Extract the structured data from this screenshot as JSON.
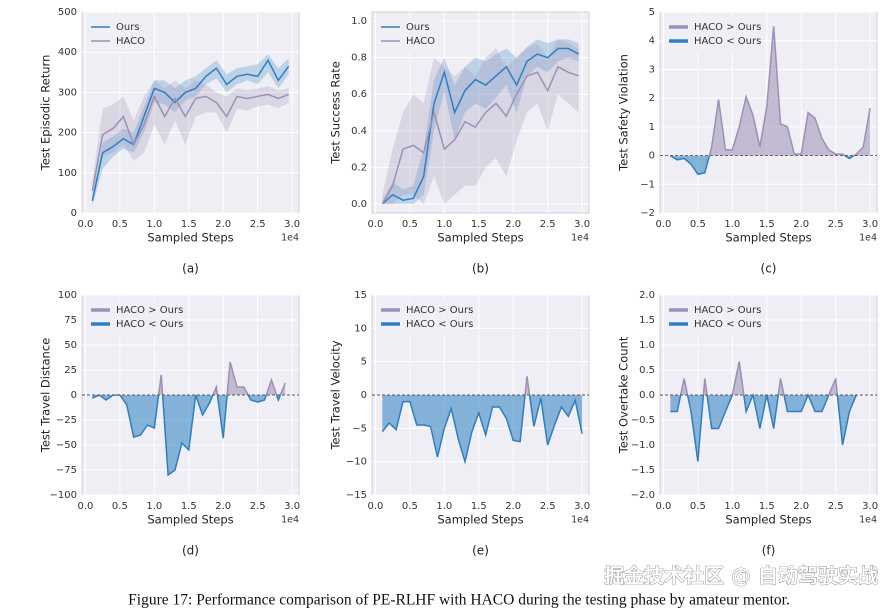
{
  "caption": "Figure 17: Performance comparison of PE-RLHF with HACO during the testing phase by amateur mentor.",
  "watermark": "掘金技术社区 @ 自动驾驶实战",
  "chart_data": [
    {
      "type": "line",
      "panel_label": "(a)",
      "x_label": "Sampled Steps",
      "x_offset_label": "1e4",
      "y_label": "Test Episodic Return",
      "grid": true,
      "legend": "upper left",
      "x": [
        0.1,
        0.25,
        0.4,
        0.55,
        0.7,
        0.85,
        1.0,
        1.15,
        1.3,
        1.45,
        1.6,
        1.75,
        1.9,
        2.05,
        2.2,
        2.35,
        2.5,
        2.65,
        2.8,
        2.95
      ],
      "series": [
        {
          "name": "Ours",
          "color": "#2e7fc1",
          "values": [
            30,
            150,
            165,
            185,
            170,
            240,
            310,
            300,
            275,
            300,
            310,
            340,
            360,
            320,
            340,
            345,
            340,
            380,
            330,
            365
          ],
          "lower": [
            20,
            110,
            140,
            160,
            150,
            200,
            275,
            270,
            250,
            280,
            290,
            320,
            335,
            300,
            320,
            330,
            320,
            350,
            310,
            345
          ],
          "upper": [
            45,
            175,
            190,
            210,
            200,
            265,
            330,
            330,
            310,
            330,
            340,
            360,
            380,
            345,
            360,
            365,
            370,
            395,
            360,
            385
          ]
        },
        {
          "name": "HACO",
          "color": "#9d8fb5",
          "values": [
            55,
            195,
            210,
            240,
            170,
            220,
            290,
            240,
            285,
            240,
            285,
            290,
            275,
            240,
            290,
            285,
            290,
            295,
            285,
            295
          ],
          "lower": [
            40,
            140,
            150,
            170,
            130,
            150,
            220,
            170,
            230,
            170,
            240,
            250,
            250,
            200,
            260,
            255,
            265,
            270,
            260,
            275
          ],
          "upper": [
            80,
            260,
            270,
            290,
            230,
            290,
            330,
            310,
            330,
            310,
            330,
            320,
            300,
            290,
            310,
            305,
            310,
            315,
            305,
            310
          ]
        }
      ],
      "xlim": [
        -0.05,
        3.1
      ],
      "xticks": [
        {
          "value": 0,
          "label": "0.0"
        },
        0.5,
        {
          "value": 1,
          "label": "1.0"
        },
        1.5,
        {
          "value": 2,
          "label": "2.0"
        },
        2.5,
        {
          "value": 3,
          "label": "3.0"
        }
      ],
      "ylim": [
        0,
        500
      ],
      "yticks": [
        0,
        100,
        200,
        300,
        400,
        500
      ]
    },
    {
      "type": "line",
      "panel_label": "(b)",
      "x_label": "Sampled Steps",
      "x_offset_label": "1e4",
      "y_label": "Test Success Rate",
      "grid": true,
      "legend": "upper left",
      "x": [
        0.1,
        0.25,
        0.4,
        0.55,
        0.7,
        0.85,
        1.0,
        1.15,
        1.3,
        1.45,
        1.6,
        1.75,
        1.9,
        2.05,
        2.2,
        2.35,
        2.5,
        2.65,
        2.8,
        2.95
      ],
      "series": [
        {
          "name": "Ours",
          "color": "#2e7fc1",
          "values": [
            0.0,
            0.05,
            0.02,
            0.03,
            0.15,
            0.55,
            0.72,
            0.5,
            0.62,
            0.68,
            0.65,
            0.7,
            0.75,
            0.65,
            0.78,
            0.82,
            0.8,
            0.85,
            0.85,
            0.82
          ],
          "lower": [
            0,
            0,
            0,
            0,
            0.05,
            0.4,
            0.62,
            0.35,
            0.5,
            0.55,
            0.52,
            0.58,
            0.65,
            0.5,
            0.7,
            0.75,
            0.72,
            0.78,
            0.8,
            0.78
          ],
          "upper": [
            0.02,
            0.12,
            0.08,
            0.1,
            0.3,
            0.68,
            0.8,
            0.65,
            0.75,
            0.8,
            0.78,
            0.82,
            0.85,
            0.8,
            0.86,
            0.9,
            0.88,
            0.9,
            0.9,
            0.88
          ]
        },
        {
          "name": "HACO",
          "color": "#9d8fb5",
          "values": [
            0.0,
            0.1,
            0.3,
            0.32,
            0.28,
            0.5,
            0.3,
            0.35,
            0.45,
            0.42,
            0.5,
            0.55,
            0.48,
            0.6,
            0.7,
            0.72,
            0.62,
            0.75,
            0.72,
            0.7
          ],
          "lower": [
            0,
            0,
            0.05,
            0.05,
            0,
            0.15,
            0,
            0.05,
            0.1,
            0.1,
            0.2,
            0.25,
            0.15,
            0.35,
            0.5,
            0.55,
            0.4,
            0.6,
            0.55,
            0.5
          ],
          "upper": [
            0.05,
            0.3,
            0.5,
            0.6,
            0.55,
            0.8,
            0.75,
            0.7,
            0.75,
            0.7,
            0.8,
            0.85,
            0.75,
            0.8,
            0.85,
            0.88,
            0.8,
            0.9,
            0.88,
            0.85
          ]
        }
      ],
      "xlim": [
        -0.05,
        3.1
      ],
      "xticks": [
        {
          "value": 0,
          "label": "0.0"
        },
        0.5,
        {
          "value": 1,
          "label": "1.0"
        },
        1.5,
        {
          "value": 2,
          "label": "2.0"
        },
        2.5,
        {
          "value": 3,
          "label": "3.0"
        }
      ],
      "ylim": [
        -0.05,
        1.05
      ],
      "yticks": [
        {
          "value": 0,
          "label": "0.0"
        },
        0.2,
        0.4,
        0.6,
        0.8,
        {
          "value": 1,
          "label": "1.0"
        }
      ]
    },
    {
      "type": "area",
      "panel_label": "(c)",
      "x_label": "Sampled Steps",
      "x_offset_label": "1e4",
      "y_label": "Test Safety Violation",
      "grid": true,
      "legend": "upper left",
      "hline": 0,
      "fill_above": {
        "name": "HACO > Ours",
        "color": "#9d8fb5"
      },
      "fill_below": {
        "name": "HACO < Ours",
        "color": "#2e7fc1"
      },
      "x": [
        0.1,
        0.2,
        0.3,
        0.4,
        0.5,
        0.6,
        0.7,
        0.8,
        0.9,
        1.0,
        1.1,
        1.2,
        1.3,
        1.4,
        1.5,
        1.6,
        1.7,
        1.8,
        1.9,
        2.0,
        2.1,
        2.2,
        2.3,
        2.4,
        2.5,
        2.6,
        2.7,
        2.8,
        2.9,
        3.0
      ],
      "values": [
        0,
        -0.15,
        -0.1,
        -0.3,
        -0.65,
        -0.6,
        0.3,
        1.95,
        0.2,
        0.2,
        1.0,
        2.05,
        1.4,
        0.3,
        1.7,
        4.5,
        1.1,
        1.0,
        0.05,
        0.05,
        1.5,
        1.3,
        0.6,
        0.2,
        0.05,
        0.05,
        -0.1,
        0.05,
        0.3,
        1.65
      ],
      "xlim": [
        -0.05,
        3.1
      ],
      "xticks": [
        {
          "value": 0,
          "label": "0.0"
        },
        0.5,
        {
          "value": 1,
          "label": "1.0"
        },
        1.5,
        {
          "value": 2,
          "label": "2.0"
        },
        2.5,
        {
          "value": 3,
          "label": "3.0"
        }
      ],
      "ylim": [
        -2,
        5
      ],
      "yticks": [
        {
          "value": -2,
          "label": "−2"
        },
        {
          "value": -1,
          "label": "−1"
        },
        0,
        1,
        2,
        3,
        4,
        5
      ]
    },
    {
      "type": "area",
      "panel_label": "(d)",
      "x_label": "Sampled Steps",
      "x_offset_label": "1e4",
      "y_label": "Test Travel Distance",
      "grid": true,
      "legend": "upper left",
      "hline": 0,
      "fill_above": {
        "name": "HACO > Ours",
        "color": "#9d8fb5"
      },
      "fill_below": {
        "name": "HACO < Ours",
        "color": "#2e7fc1"
      },
      "x": [
        0.1,
        0.2,
        0.3,
        0.4,
        0.5,
        0.6,
        0.7,
        0.8,
        0.9,
        1.0,
        1.1,
        1.2,
        1.3,
        1.4,
        1.5,
        1.6,
        1.7,
        1.8,
        1.9,
        2.0,
        2.1,
        2.2,
        2.3,
        2.4,
        2.5,
        2.6,
        2.7,
        2.8,
        2.9
      ],
      "values": [
        -3,
        0,
        -5,
        0,
        0,
        -10,
        -42,
        -40,
        -30,
        -33,
        20,
        -80,
        -75,
        -48,
        -55,
        0,
        -20,
        -8,
        8,
        -43,
        33,
        8,
        8,
        -5,
        -7,
        -5,
        15,
        -5,
        12
      ],
      "xlim": [
        -0.05,
        3.1
      ],
      "xticks": [
        {
          "value": 0,
          "label": "0.0"
        },
        0.5,
        {
          "value": 1,
          "label": "1.0"
        },
        1.5,
        {
          "value": 2,
          "label": "2.0"
        },
        2.5,
        {
          "value": 3,
          "label": "3.0"
        }
      ],
      "ylim": [
        -100,
        100
      ],
      "yticks": [
        {
          "value": -100,
          "label": "−100"
        },
        {
          "value": -75,
          "label": "−75"
        },
        {
          "value": -50,
          "label": "−50"
        },
        {
          "value": -25,
          "label": "−25"
        },
        0,
        25,
        50,
        75,
        100
      ]
    },
    {
      "type": "area",
      "panel_label": "(e)",
      "x_label": "Sampled Steps",
      "x_offset_label": "1e4",
      "y_label": "Test Travel Velocity",
      "grid": true,
      "legend": "upper left",
      "hline": 0,
      "fill_above": {
        "name": "HACO > Ours",
        "color": "#9d8fb5"
      },
      "fill_below": {
        "name": "HACO < Ours",
        "color": "#2e7fc1"
      },
      "x": [
        0.1,
        0.2,
        0.3,
        0.4,
        0.5,
        0.6,
        0.7,
        0.8,
        0.9,
        1.0,
        1.1,
        1.2,
        1.3,
        1.4,
        1.5,
        1.6,
        1.7,
        1.8,
        1.9,
        2.0,
        2.1,
        2.2,
        2.3,
        2.4,
        2.5,
        2.6,
        2.7,
        2.8,
        2.9,
        3.0
      ],
      "values": [
        -5.5,
        -4.2,
        -5.2,
        -1,
        -1,
        -4.5,
        -4.5,
        -4.7,
        -9.3,
        -5,
        -2,
        -6.5,
        -10,
        -5.5,
        -2.7,
        -6,
        -1.8,
        -1.8,
        -3.5,
        -6.8,
        -7,
        2.8,
        -4.7,
        -0.5,
        -7.5,
        -4.5,
        -1.8,
        -3.2,
        -0.8,
        -5.8
      ],
      "xlim": [
        -0.05,
        3.1
      ],
      "xticks": [
        {
          "value": 0,
          "label": "0.0"
        },
        0.5,
        {
          "value": 1,
          "label": "1.0"
        },
        1.5,
        {
          "value": 2,
          "label": "2.0"
        },
        2.5,
        {
          "value": 3,
          "label": "3.0"
        }
      ],
      "ylim": [
        -15,
        15
      ],
      "yticks": [
        {
          "value": -15,
          "label": "−15"
        },
        {
          "value": -10,
          "label": "−10"
        },
        {
          "value": -5,
          "label": "−5"
        },
        0,
        5,
        10,
        15
      ]
    },
    {
      "type": "area",
      "panel_label": "(f)",
      "x_label": "Sampled Steps",
      "x_offset_label": "1e4",
      "y_label": "Test Overtake Count",
      "grid": true,
      "legend": "upper left",
      "hline": 0,
      "fill_above": {
        "name": "HACO > Ours",
        "color": "#9d8fb5"
      },
      "fill_below": {
        "name": "HACO < Ours",
        "color": "#2e7fc1"
      },
      "x": [
        0.1,
        0.2,
        0.3,
        0.4,
        0.5,
        0.6,
        0.7,
        0.8,
        0.9,
        1.0,
        1.1,
        1.2,
        1.3,
        1.4,
        1.5,
        1.6,
        1.7,
        1.8,
        1.9,
        2.0,
        2.1,
        2.2,
        2.3,
        2.4,
        2.5,
        2.6,
        2.7,
        2.8
      ],
      "values": [
        -0.33,
        -0.33,
        0.33,
        -0.33,
        -1.33,
        0.33,
        -0.67,
        -0.67,
        -0.33,
        0,
        0.67,
        -0.33,
        0,
        -0.67,
        0,
        -0.67,
        0.33,
        -0.33,
        -0.33,
        -0.33,
        0,
        -0.33,
        -0.33,
        0,
        0.33,
        -1.0,
        -0.33,
        0
      ],
      "xlim": [
        -0.05,
        3.1
      ],
      "xticks": [
        {
          "value": 0,
          "label": "0.0"
        },
        0.5,
        {
          "value": 1,
          "label": "1.0"
        },
        1.5,
        {
          "value": 2,
          "label": "2.0"
        },
        2.5,
        {
          "value": 3,
          "label": "3.0"
        }
      ],
      "ylim": [
        -2,
        2
      ],
      "yticks": [
        {
          "value": -2,
          "label": "−2.0"
        },
        {
          "value": -1.5,
          "label": "−1.5"
        },
        {
          "value": -1,
          "label": "−1.0"
        },
        {
          "value": -0.5,
          "label": "−0.5"
        },
        {
          "value": 0,
          "label": "0.0"
        },
        0.5,
        {
          "value": 1,
          "label": "1.0"
        },
        1.5,
        {
          "value": 2,
          "label": "2.0"
        }
      ]
    }
  ]
}
